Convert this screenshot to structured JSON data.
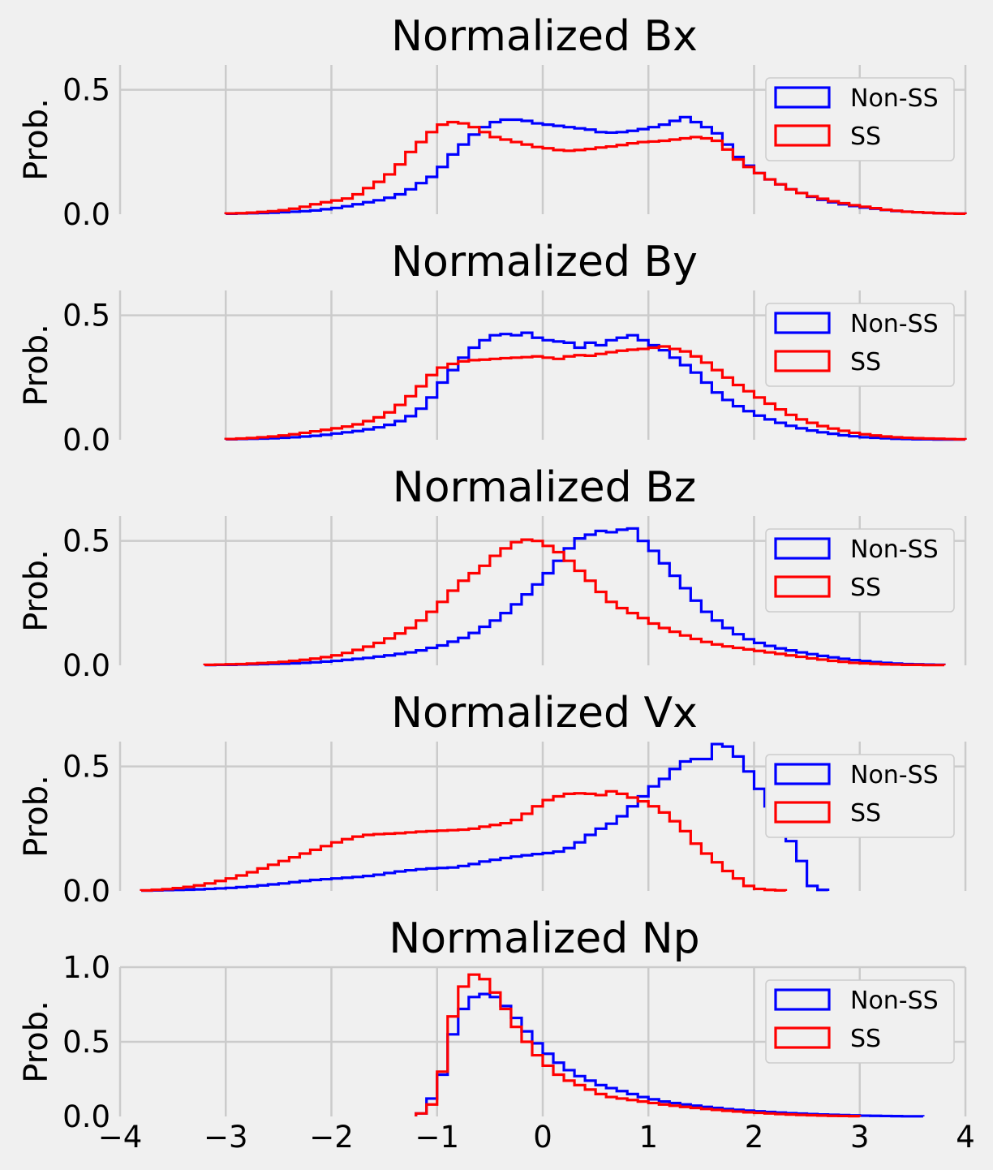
{
  "chart_data": [
    {
      "type": "histogram",
      "title": "Normalized Bx",
      "ylabel": "Prob.",
      "xlim": [
        -4,
        4
      ],
      "ylim": [
        0,
        0.6
      ],
      "yticks": [
        0.0,
        0.5
      ],
      "ytick_labels": [
        "0.0",
        "0.5"
      ],
      "legend_position": "top-right",
      "bin_start": -3.0,
      "bin_width": 0.1,
      "series": [
        {
          "name": "Non-SS",
          "color": "#0000ff",
          "values": [
            0.002,
            0.003,
            0.004,
            0.005,
            0.006,
            0.008,
            0.01,
            0.012,
            0.015,
            0.02,
            0.025,
            0.032,
            0.04,
            0.048,
            0.056,
            0.066,
            0.08,
            0.1,
            0.125,
            0.15,
            0.19,
            0.24,
            0.28,
            0.32,
            0.35,
            0.37,
            0.38,
            0.38,
            0.375,
            0.365,
            0.36,
            0.355,
            0.35,
            0.345,
            0.34,
            0.33,
            0.328,
            0.33,
            0.335,
            0.342,
            0.35,
            0.36,
            0.375,
            0.39,
            0.37,
            0.35,
            0.325,
            0.28,
            0.23,
            0.195,
            0.165,
            0.14,
            0.12,
            0.1,
            0.085,
            0.07,
            0.058,
            0.048,
            0.04,
            0.033,
            0.027,
            0.022,
            0.017,
            0.013,
            0.01,
            0.008,
            0.006,
            0.004,
            0.003,
            0.002
          ]
        },
        {
          "name": "SS",
          "color": "#ff0000",
          "values": [
            0.003,
            0.004,
            0.006,
            0.009,
            0.012,
            0.016,
            0.022,
            0.03,
            0.04,
            0.048,
            0.055,
            0.063,
            0.08,
            0.105,
            0.13,
            0.16,
            0.2,
            0.25,
            0.29,
            0.33,
            0.36,
            0.37,
            0.365,
            0.35,
            0.33,
            0.31,
            0.3,
            0.29,
            0.28,
            0.27,
            0.265,
            0.258,
            0.255,
            0.258,
            0.262,
            0.268,
            0.272,
            0.278,
            0.285,
            0.29,
            0.292,
            0.295,
            0.3,
            0.305,
            0.31,
            0.305,
            0.295,
            0.26,
            0.22,
            0.19,
            0.165,
            0.14,
            0.12,
            0.1,
            0.085,
            0.072,
            0.062,
            0.052,
            0.044,
            0.036,
            0.03,
            0.024,
            0.018,
            0.014,
            0.01,
            0.008,
            0.006,
            0.004,
            0.003,
            0.002
          ]
        }
      ]
    },
    {
      "type": "histogram",
      "title": "Normalized By",
      "ylabel": "Prob.",
      "xlim": [
        -4,
        4
      ],
      "ylim": [
        0,
        0.6
      ],
      "yticks": [
        0.0,
        0.5
      ],
      "ytick_labels": [
        "0.0",
        "0.5"
      ],
      "legend_position": "top-right",
      "bin_start": -3.0,
      "bin_width": 0.1,
      "series": [
        {
          "name": "Non-SS",
          "color": "#0000ff",
          "values": [
            0.002,
            0.003,
            0.004,
            0.005,
            0.006,
            0.008,
            0.01,
            0.013,
            0.016,
            0.02,
            0.025,
            0.03,
            0.035,
            0.042,
            0.05,
            0.06,
            0.075,
            0.095,
            0.125,
            0.17,
            0.23,
            0.28,
            0.33,
            0.37,
            0.4,
            0.42,
            0.425,
            0.42,
            0.43,
            0.41,
            0.4,
            0.395,
            0.39,
            0.37,
            0.39,
            0.38,
            0.4,
            0.41,
            0.42,
            0.4,
            0.38,
            0.36,
            0.33,
            0.3,
            0.27,
            0.23,
            0.19,
            0.16,
            0.135,
            0.115,
            0.097,
            0.082,
            0.068,
            0.056,
            0.046,
            0.037,
            0.03,
            0.024,
            0.018,
            0.014,
            0.01,
            0.008,
            0.006,
            0.004,
            0.003,
            0.002,
            0.002,
            0.001,
            0.001,
            0.001
          ]
        },
        {
          "name": "SS",
          "color": "#ff0000",
          "values": [
            0.003,
            0.005,
            0.007,
            0.01,
            0.013,
            0.017,
            0.022,
            0.028,
            0.034,
            0.04,
            0.046,
            0.053,
            0.062,
            0.075,
            0.09,
            0.11,
            0.14,
            0.175,
            0.215,
            0.26,
            0.29,
            0.305,
            0.315,
            0.32,
            0.322,
            0.325,
            0.328,
            0.33,
            0.332,
            0.335,
            0.33,
            0.325,
            0.335,
            0.34,
            0.338,
            0.345,
            0.352,
            0.358,
            0.362,
            0.365,
            0.37,
            0.375,
            0.365,
            0.355,
            0.335,
            0.31,
            0.28,
            0.25,
            0.22,
            0.195,
            0.17,
            0.145,
            0.122,
            0.1,
            0.082,
            0.068,
            0.055,
            0.045,
            0.036,
            0.028,
            0.022,
            0.017,
            0.013,
            0.01,
            0.008,
            0.006,
            0.005,
            0.004,
            0.003,
            0.002
          ]
        }
      ]
    },
    {
      "type": "histogram",
      "title": "Normalized Bz",
      "ylabel": "Prob.",
      "xlim": [
        -4,
        4
      ],
      "ylim": [
        0,
        0.6
      ],
      "yticks": [
        0.0,
        0.5
      ],
      "ytick_labels": [
        "0.0",
        "0.5"
      ],
      "legend_position": "top-right",
      "bin_start": -3.2,
      "bin_width": 0.1,
      "series": [
        {
          "name": "Non-SS",
          "color": "#0000ff",
          "values": [
            0.001,
            0.002,
            0.002,
            0.003,
            0.004,
            0.005,
            0.006,
            0.007,
            0.008,
            0.01,
            0.012,
            0.015,
            0.018,
            0.022,
            0.026,
            0.03,
            0.035,
            0.04,
            0.046,
            0.052,
            0.06,
            0.07,
            0.08,
            0.095,
            0.11,
            0.13,
            0.155,
            0.18,
            0.21,
            0.245,
            0.285,
            0.325,
            0.37,
            0.42,
            0.47,
            0.51,
            0.525,
            0.54,
            0.535,
            0.545,
            0.55,
            0.5,
            0.46,
            0.41,
            0.36,
            0.31,
            0.26,
            0.215,
            0.18,
            0.15,
            0.125,
            0.105,
            0.09,
            0.078,
            0.068,
            0.06,
            0.052,
            0.045,
            0.038,
            0.032,
            0.026,
            0.021,
            0.017,
            0.013,
            0.01,
            0.007,
            0.005,
            0.004,
            0.003,
            0.002
          ]
        },
        {
          "name": "SS",
          "color": "#ff0000",
          "values": [
            0.002,
            0.003,
            0.004,
            0.005,
            0.007,
            0.009,
            0.011,
            0.014,
            0.018,
            0.022,
            0.027,
            0.033,
            0.04,
            0.05,
            0.062,
            0.075,
            0.09,
            0.108,
            0.128,
            0.15,
            0.18,
            0.215,
            0.255,
            0.3,
            0.34,
            0.37,
            0.4,
            0.44,
            0.47,
            0.495,
            0.505,
            0.5,
            0.48,
            0.455,
            0.42,
            0.38,
            0.34,
            0.295,
            0.255,
            0.23,
            0.21,
            0.19,
            0.168,
            0.15,
            0.135,
            0.12,
            0.106,
            0.094,
            0.084,
            0.076,
            0.07,
            0.064,
            0.058,
            0.052,
            0.046,
            0.04,
            0.034,
            0.028,
            0.023,
            0.018,
            0.014,
            0.01,
            0.008,
            0.006,
            0.004,
            0.003,
            0.002,
            0.002,
            0.001,
            0.001
          ]
        }
      ]
    },
    {
      "type": "histogram",
      "title": "Normalized Vx",
      "ylabel": "Prob.",
      "xlim": [
        -4,
        4
      ],
      "ylim": [
        0,
        0.6
      ],
      "yticks": [
        0.0,
        0.5
      ],
      "ytick_labels": [
        "0.0",
        "0.5"
      ],
      "legend_position": "top-right",
      "bin_start": -3.8,
      "bin_width": 0.1,
      "series": [
        {
          "name": "Non-SS",
          "color": "#0000ff",
          "values": [
            0.001,
            0.002,
            0.003,
            0.004,
            0.005,
            0.006,
            0.008,
            0.01,
            0.012,
            0.015,
            0.018,
            0.022,
            0.026,
            0.03,
            0.035,
            0.04,
            0.044,
            0.047,
            0.05,
            0.053,
            0.056,
            0.06,
            0.065,
            0.072,
            0.078,
            0.083,
            0.087,
            0.09,
            0.092,
            0.094,
            0.1,
            0.108,
            0.118,
            0.125,
            0.132,
            0.138,
            0.143,
            0.148,
            0.152,
            0.158,
            0.172,
            0.195,
            0.225,
            0.25,
            0.27,
            0.3,
            0.34,
            0.38,
            0.42,
            0.45,
            0.49,
            0.52,
            0.53,
            0.53,
            0.59,
            0.58,
            0.54,
            0.48,
            0.41,
            0.34,
            0.27,
            0.2,
            0.12,
            0.02,
            0.004
          ]
        },
        {
          "name": "SS",
          "color": "#ff0000",
          "values": [
            0.002,
            0.004,
            0.007,
            0.011,
            0.016,
            0.022,
            0.03,
            0.04,
            0.05,
            0.062,
            0.075,
            0.09,
            0.105,
            0.12,
            0.135,
            0.15,
            0.165,
            0.18,
            0.195,
            0.208,
            0.218,
            0.225,
            0.228,
            0.23,
            0.232,
            0.235,
            0.238,
            0.24,
            0.242,
            0.244,
            0.246,
            0.25,
            0.258,
            0.265,
            0.272,
            0.285,
            0.31,
            0.34,
            0.365,
            0.38,
            0.39,
            0.392,
            0.39,
            0.385,
            0.4,
            0.39,
            0.375,
            0.36,
            0.34,
            0.315,
            0.28,
            0.24,
            0.19,
            0.15,
            0.115,
            0.08,
            0.05,
            0.02,
            0.008,
            0.004,
            0.002
          ]
        }
      ]
    },
    {
      "type": "histogram",
      "title": "Normalized Np",
      "ylabel": "Prob.",
      "xlim": [
        -4,
        4
      ],
      "ylim": [
        0,
        1.0
      ],
      "yticks": [
        0.0,
        0.5,
        1.0
      ],
      "ytick_labels": [
        "0.0",
        "0.5",
        "1.0"
      ],
      "xticks": [
        -4,
        -3,
        -2,
        -1,
        0,
        1,
        2,
        3,
        4
      ],
      "xtick_labels": [
        "−4",
        "−3",
        "−2",
        "−1",
        "0",
        "1",
        "2",
        "3",
        "4"
      ],
      "legend_position": "top-right",
      "bin_start": -1.2,
      "bin_width": 0.1,
      "series": [
        {
          "name": "Non-SS",
          "color": "#0000ff",
          "values": [
            0.02,
            0.12,
            0.28,
            0.55,
            0.72,
            0.8,
            0.82,
            0.8,
            0.74,
            0.66,
            0.57,
            0.49,
            0.42,
            0.36,
            0.31,
            0.27,
            0.24,
            0.21,
            0.19,
            0.17,
            0.15,
            0.13,
            0.115,
            0.1,
            0.09,
            0.08,
            0.072,
            0.064,
            0.057,
            0.05,
            0.044,
            0.039,
            0.034,
            0.03,
            0.026,
            0.022,
            0.019,
            0.016,
            0.013,
            0.011,
            0.009,
            0.007,
            0.005,
            0.004,
            0.003,
            0.002,
            0.001,
            0.001
          ]
        },
        {
          "name": "SS",
          "color": "#ff0000",
          "values": [
            0.02,
            0.08,
            0.3,
            0.67,
            0.87,
            0.95,
            0.92,
            0.83,
            0.72,
            0.6,
            0.5,
            0.41,
            0.34,
            0.28,
            0.24,
            0.21,
            0.18,
            0.15,
            0.13,
            0.12,
            0.11,
            0.1,
            0.09,
            0.08,
            0.072,
            0.064,
            0.057,
            0.05,
            0.044,
            0.038,
            0.033,
            0.028,
            0.024,
            0.02,
            0.016,
            0.013,
            0.01,
            0.008,
            0.006,
            0.004,
            0.003,
            0.002
          ]
        }
      ]
    }
  ]
}
